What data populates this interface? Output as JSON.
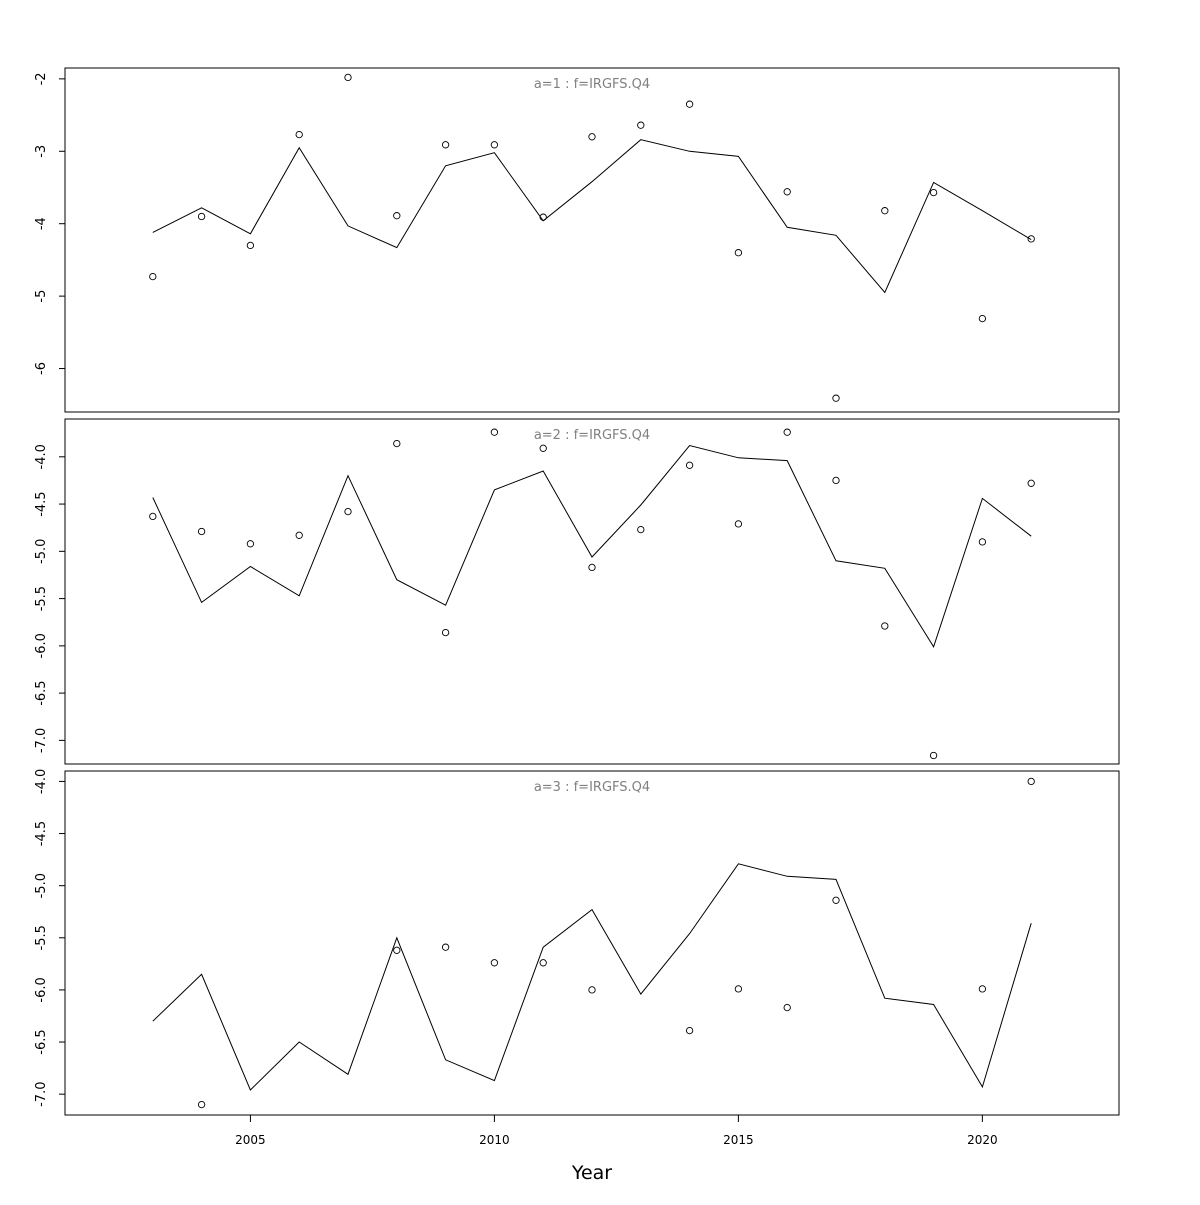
{
  "chart_data": {
    "type": "line",
    "xlabel": "Year",
    "xlim": [
      2001.2,
      2022.8
    ],
    "x_ticks": [
      2005,
      2010,
      2015,
      2020
    ],
    "x_tick_labels": [
      "2005",
      "2010",
      "2015",
      "2020"
    ],
    "x": [
      2003,
      2004,
      2005,
      2006,
      2007,
      2008,
      2009,
      2010,
      2011,
      2012,
      2013,
      2014,
      2015,
      2016,
      2017,
      2018,
      2019,
      2020,
      2021
    ],
    "panels": [
      {
        "title": "a=1  :  f=IRGFS.Q4",
        "ylim": [
          -6.6,
          -1.85
        ],
        "y_ticks": [
          -2,
          -3,
          -4,
          -5,
          -6
        ],
        "y_tick_labels": [
          "-2",
          "-3",
          "-4",
          "-5",
          "-6"
        ],
        "series": [
          {
            "kind": "points",
            "values": [
              -4.73,
              -3.9,
              -4.3,
              -2.77,
              -1.98,
              -3.89,
              -2.91,
              -2.91,
              -3.91,
              -2.8,
              -2.64,
              -2.35,
              -4.4,
              -3.56,
              -6.41,
              -3.82,
              -3.57,
              -5.31,
              -4.21
            ]
          },
          {
            "kind": "line",
            "values": [
              -4.12,
              -3.78,
              -4.14,
              -2.95,
              -4.03,
              -4.33,
              -3.2,
              -3.02,
              -3.96,
              -3.42,
              -2.84,
              -3.0,
              -3.07,
              -4.05,
              -4.16,
              -4.95,
              -3.43,
              -3.82,
              -4.22
            ]
          }
        ]
      },
      {
        "title": "a=2  :  f=IRGFS.Q4",
        "ylim": [
          -7.25,
          -3.6
        ],
        "y_ticks": [
          -4.0,
          -4.5,
          -5.0,
          -5.5,
          -6.0,
          -6.5,
          -7.0
        ],
        "y_tick_labels": [
          "-4.0",
          "-4.5",
          "-5.0",
          "-5.5",
          "-6.0",
          "-6.5",
          "-7.0"
        ],
        "series": [
          {
            "kind": "points",
            "values": [
              -4.63,
              -4.79,
              -4.92,
              -4.83,
              -4.58,
              -3.86,
              -5.86,
              -3.74,
              -3.91,
              -5.17,
              -4.77,
              -4.09,
              -4.71,
              -3.74,
              -4.25,
              -5.79,
              -7.16,
              -4.9,
              -4.28
            ]
          },
          {
            "kind": "line",
            "values": [
              -4.43,
              -5.54,
              -5.16,
              -5.47,
              -4.2,
              -5.3,
              -5.57,
              -4.35,
              -4.15,
              -5.06,
              -4.51,
              -3.88,
              -4.01,
              -4.04,
              -5.1,
              -5.18,
              -6.01,
              -4.44,
              -4.84
            ]
          }
        ]
      },
      {
        "title": "a=3  :  f=IRGFS.Q4",
        "ylim": [
          -7.2,
          -3.9
        ],
        "y_ticks": [
          -4.0,
          -4.5,
          -5.0,
          -5.5,
          -6.0,
          -6.5,
          -7.0
        ],
        "y_tick_labels": [
          "-4.0",
          "-4.5",
          "-5.0",
          "-5.5",
          "-6.0",
          "-6.5",
          "-7.0"
        ],
        "series": [
          {
            "kind": "points",
            "values": [
              -7.1,
              -5.62,
              -5.59,
              -5.74,
              -5.74,
              -6.0,
              -6.39,
              -5.99,
              -6.17,
              -5.14,
              -5.99,
              -4.0
            ]
          },
          {
            "kind": "line",
            "values": [
              -6.3,
              -5.85,
              -6.96,
              -6.5,
              -6.81,
              -5.5,
              -6.67,
              -6.87,
              -5.59,
              -5.23,
              -6.04,
              -5.46,
              -4.79,
              -4.91,
              -4.94,
              -6.08,
              -6.14,
              -6.93,
              -5.36
            ]
          }
        ],
        "points_x": [
          2004,
          2008,
          2009,
          2010,
          2011,
          2012,
          2014,
          2015,
          2016,
          2017,
          2020,
          2021
        ]
      }
    ]
  }
}
